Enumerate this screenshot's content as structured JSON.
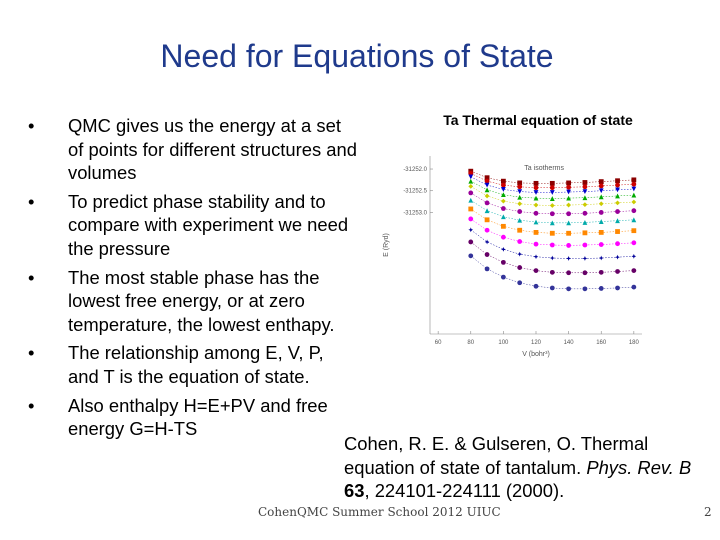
{
  "slide": {
    "title": "Need for Equations of State",
    "bullets": [
      "QMC gives us the energy at a set of points for different structures and volumes",
      "To predict phase stability and to compare with experiment we need the pressure",
      "The most stable phase has the lowest free energy, or at zero temperature, the lowest enthapy.",
      "The relationship among E, V, P, and T is the equation of state.",
      "Also enthalpy H=E+PV and free energy G=H-TS"
    ],
    "bullet_glyph": "•",
    "figure_caption": "Ta Thermal equation of state",
    "citation": {
      "authors": "Cohen, R. E. & Gulseren, O. Thermal equation of state of tantalum. ",
      "journal": "Phys. Rev. B",
      "volume": "63",
      "pages": ", 224101-224111 (2000)."
    },
    "footer": "Cohen",
    "footer_full": "QMC Summer School 2012 UIUC",
    "slide_number": "2"
  },
  "chart_data": {
    "type": "scatter",
    "title": "Ta isotherms",
    "xlabel": "V (bohr³)",
    "ylabel": "E (Ryd)",
    "xlim": [
      55,
      185
    ],
    "ylim": [
      -31255.8,
      -31251.7
    ],
    "xticks": [
      "60",
      "80",
      "100",
      "120",
      "140",
      "160",
      "180"
    ],
    "yticks": [
      "-31252.0",
      "-31252.5",
      "-31253.0"
    ],
    "grid": false,
    "x": [
      80,
      90,
      100,
      110,
      120,
      130,
      140,
      150,
      160,
      170,
      180
    ],
    "series": [
      {
        "color": "#8b0000",
        "marker": "square",
        "values": [
          -31252.05,
          -31252.2,
          -31252.28,
          -31252.32,
          -31252.33,
          -31252.33,
          -31252.32,
          -31252.31,
          -31252.29,
          -31252.27,
          -31252.25
        ]
      },
      {
        "color": "#cc0000",
        "marker": "circle",
        "values": [
          -31252.1,
          -31252.28,
          -31252.37,
          -31252.41,
          -31252.43,
          -31252.43,
          -31252.42,
          -31252.41,
          -31252.39,
          -31252.37,
          -31252.35
        ]
      },
      {
        "color": "#0000cc",
        "marker": "triangle-down",
        "values": [
          -31252.18,
          -31252.37,
          -31252.47,
          -31252.52,
          -31252.54,
          -31252.54,
          -31252.53,
          -31252.52,
          -31252.5,
          -31252.48,
          -31252.46
        ]
      },
      {
        "color": "#00aa00",
        "marker": "triangle",
        "values": [
          -31252.28,
          -31252.48,
          -31252.59,
          -31252.65,
          -31252.67,
          -31252.68,
          -31252.67,
          -31252.66,
          -31252.64,
          -31252.62,
          -31252.6
        ]
      },
      {
        "color": "#cccc00",
        "marker": "diamond",
        "values": [
          -31252.4,
          -31252.62,
          -31252.74,
          -31252.8,
          -31252.83,
          -31252.84,
          -31252.83,
          -31252.82,
          -31252.8,
          -31252.78,
          -31252.76
        ]
      },
      {
        "color": "#990099",
        "marker": "circle",
        "values": [
          -31252.55,
          -31252.78,
          -31252.91,
          -31252.98,
          -31253.02,
          -31253.03,
          -31253.03,
          -31253.02,
          -31253.0,
          -31252.98,
          -31252.96
        ]
      },
      {
        "color": "#00aaaa",
        "marker": "triangle",
        "values": [
          -31252.72,
          -31252.96,
          -31253.1,
          -31253.18,
          -31253.22,
          -31253.24,
          -31253.24,
          -31253.23,
          -31253.21,
          -31253.19,
          -31253.17
        ]
      },
      {
        "color": "#ff8800",
        "marker": "square",
        "values": [
          -31252.92,
          -31253.17,
          -31253.32,
          -31253.41,
          -31253.46,
          -31253.48,
          -31253.48,
          -31253.47,
          -31253.46,
          -31253.44,
          -31253.42
        ]
      },
      {
        "color": "#ff00ff",
        "marker": "circle",
        "values": [
          -31253.15,
          -31253.41,
          -31253.57,
          -31253.67,
          -31253.73,
          -31253.75,
          -31253.76,
          -31253.75,
          -31253.74,
          -31253.72,
          -31253.7
        ]
      },
      {
        "color": "#000099",
        "marker": "star",
        "values": [
          -31253.4,
          -31253.68,
          -31253.85,
          -31253.96,
          -31254.02,
          -31254.05,
          -31254.06,
          -31254.06,
          -31254.05,
          -31254.03,
          -31254.01
        ]
      },
      {
        "color": "#660066",
        "marker": "circle",
        "values": [
          -31253.68,
          -31253.97,
          -31254.15,
          -31254.27,
          -31254.34,
          -31254.38,
          -31254.39,
          -31254.39,
          -31254.38,
          -31254.36,
          -31254.34
        ]
      },
      {
        "color": "#333399",
        "marker": "circle",
        "values": [
          -31254.0,
          -31254.3,
          -31254.49,
          -31254.62,
          -31254.7,
          -31254.74,
          -31254.76,
          -31254.76,
          -31254.75,
          -31254.74,
          -31254.72
        ]
      }
    ]
  }
}
